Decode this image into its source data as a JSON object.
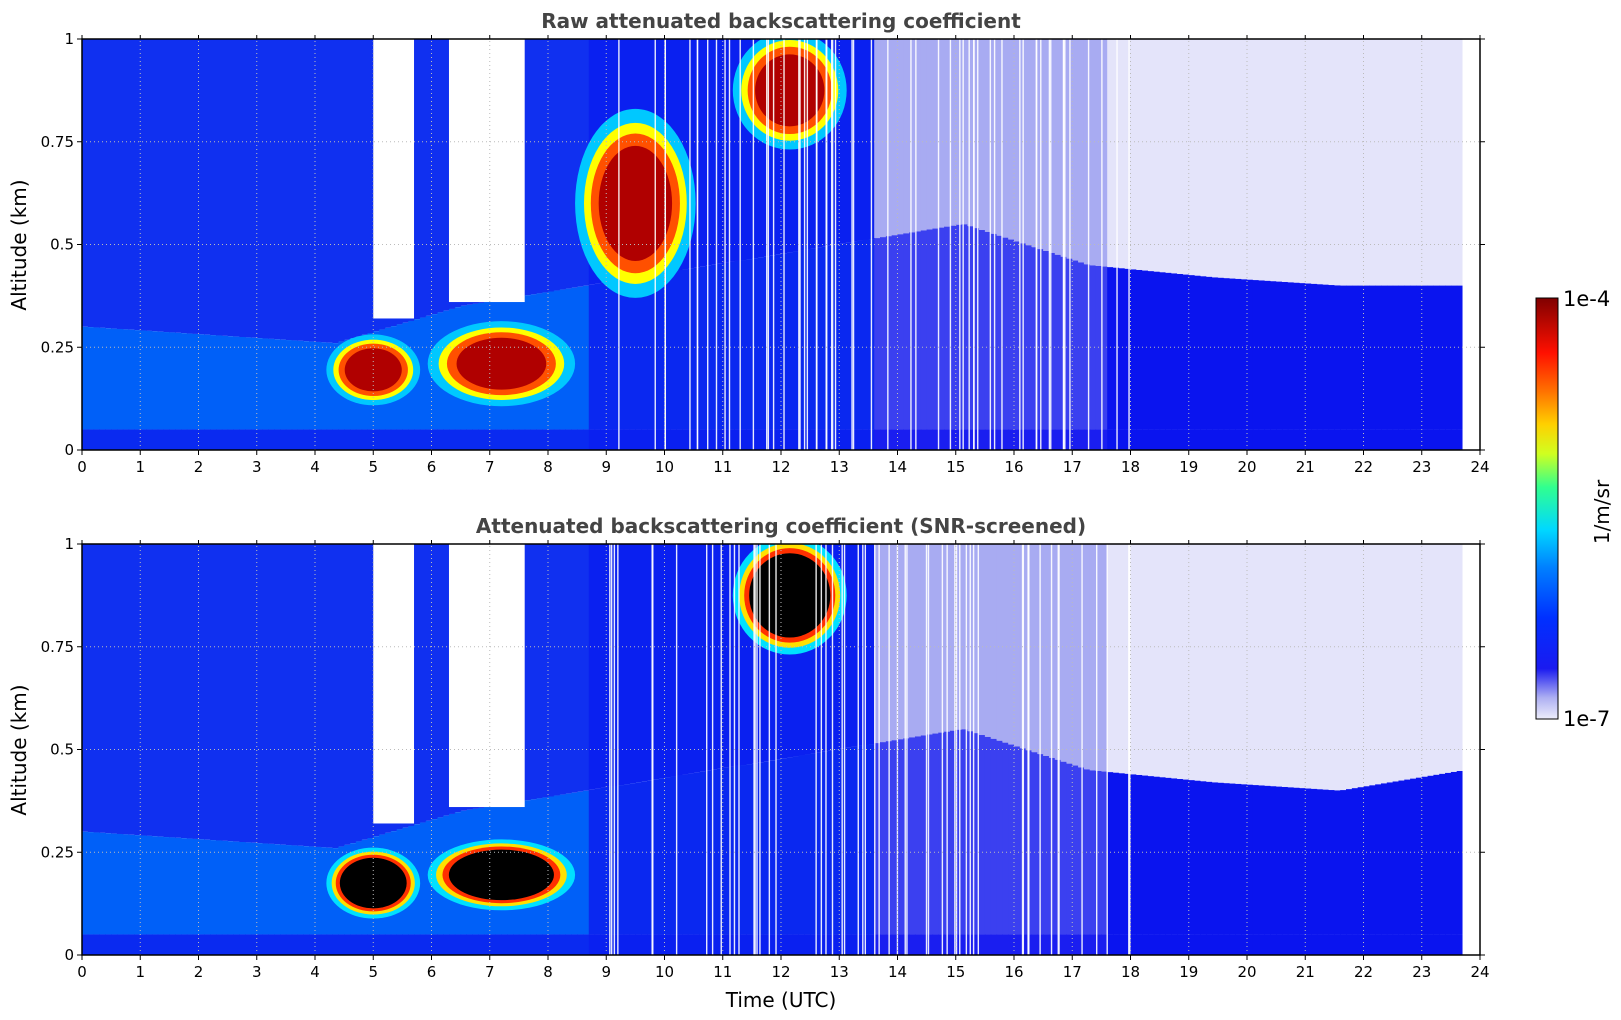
{
  "chart_data": [
    {
      "type": "heatmap",
      "title": "Raw attenuated backscattering coefficient",
      "xlabel": "",
      "ylabel": "Altitude (km)",
      "xlim": [
        0,
        24
      ],
      "ylim": [
        0,
        1
      ],
      "xticks": [
        0,
        1,
        2,
        3,
        4,
        5,
        6,
        7,
        8,
        9,
        10,
        11,
        12,
        13,
        14,
        15,
        16,
        17,
        18,
        19,
        20,
        21,
        22,
        23,
        24
      ],
      "yticks": [
        {
          "value": 0,
          "label": "0"
        },
        {
          "value": 0.25,
          "label": "0.25"
        },
        {
          "value": 0.5,
          "label": "0.5"
        },
        {
          "value": 0.75,
          "label": "0.75"
        },
        {
          "value": 1,
          "label": "1"
        }
      ],
      "grid": true,
      "data_end_time": 23.7,
      "features": [
        {
          "kind": "boundary_layer",
          "time": [
            0,
            23.7
          ],
          "top_km": [
            0.3,
            0.28,
            0.26,
            0.35,
            0.4,
            0.45,
            0.5,
            0.55,
            0.45,
            0.42,
            0.4,
            0.4
          ]
        },
        {
          "kind": "high_backscatter_aerosol",
          "time": [
            4.3,
            5.7
          ],
          "altitude_km": [
            0.12,
            0.27
          ]
        },
        {
          "kind": "high_backscatter_aerosol",
          "time": [
            6.1,
            8.3
          ],
          "altitude_km": [
            0.12,
            0.3
          ]
        },
        {
          "kind": "cloud",
          "time": [
            11.3,
            13.0
          ],
          "altitude_km": [
            0.75,
            1.0
          ]
        },
        {
          "kind": "rising_layer",
          "time": [
            8.6,
            10.4
          ],
          "altitude_km": [
            0.4,
            0.8
          ]
        }
      ]
    },
    {
      "type": "heatmap",
      "title": "Attenuated backscattering coefficient (SNR-screened)",
      "xlabel": "Time (UTC)",
      "ylabel": "Altitude (km)",
      "xlim": [
        0,
        24
      ],
      "ylim": [
        0,
        1
      ],
      "xticks": [
        0,
        1,
        2,
        3,
        4,
        5,
        6,
        7,
        8,
        9,
        10,
        11,
        12,
        13,
        14,
        15,
        16,
        17,
        18,
        19,
        20,
        21,
        22,
        23,
        24
      ],
      "yticks": [
        {
          "value": 0,
          "label": "0"
        },
        {
          "value": 0.25,
          "label": "0.25"
        },
        {
          "value": 0.5,
          "label": "0.5"
        },
        {
          "value": 0.75,
          "label": "0.75"
        },
        {
          "value": 1,
          "label": "1"
        }
      ],
      "grid": true,
      "data_end_time": 23.7,
      "features": [
        {
          "kind": "boundary_layer",
          "time": [
            0,
            23.7
          ],
          "top_km": [
            0.3,
            0.28,
            0.26,
            0.35,
            0.4,
            0.45,
            0.5,
            0.55,
            0.45,
            0.42,
            0.4,
            0.45
          ]
        },
        {
          "kind": "saturated_aerosol",
          "time": [
            4.3,
            5.7
          ],
          "altitude_km": [
            0.1,
            0.25
          ]
        },
        {
          "kind": "saturated_aerosol",
          "time": [
            6.1,
            8.3
          ],
          "altitude_km": [
            0.12,
            0.27
          ]
        },
        {
          "kind": "saturated_cloud",
          "time": [
            11.3,
            13.0
          ],
          "altitude_km": [
            0.75,
            1.0
          ]
        }
      ]
    }
  ],
  "colorbar": {
    "label": "1/m/sr",
    "max_label": "1e-4",
    "min_label": "1e-7",
    "scale": "log",
    "colormap": [
      "#e6e6fa",
      "#c8c8f5",
      "#0a14f0",
      "#0060ff",
      "#00d8ff",
      "#30ff80",
      "#ffff00",
      "#ff8000",
      "#ff0000",
      "#800000"
    ]
  },
  "colors": {
    "clear": "#ffffff",
    "background_low_signal": "#e4e4fa",
    "aerosol_blue": "#0022ee",
    "grid": "#bbbbbb"
  }
}
